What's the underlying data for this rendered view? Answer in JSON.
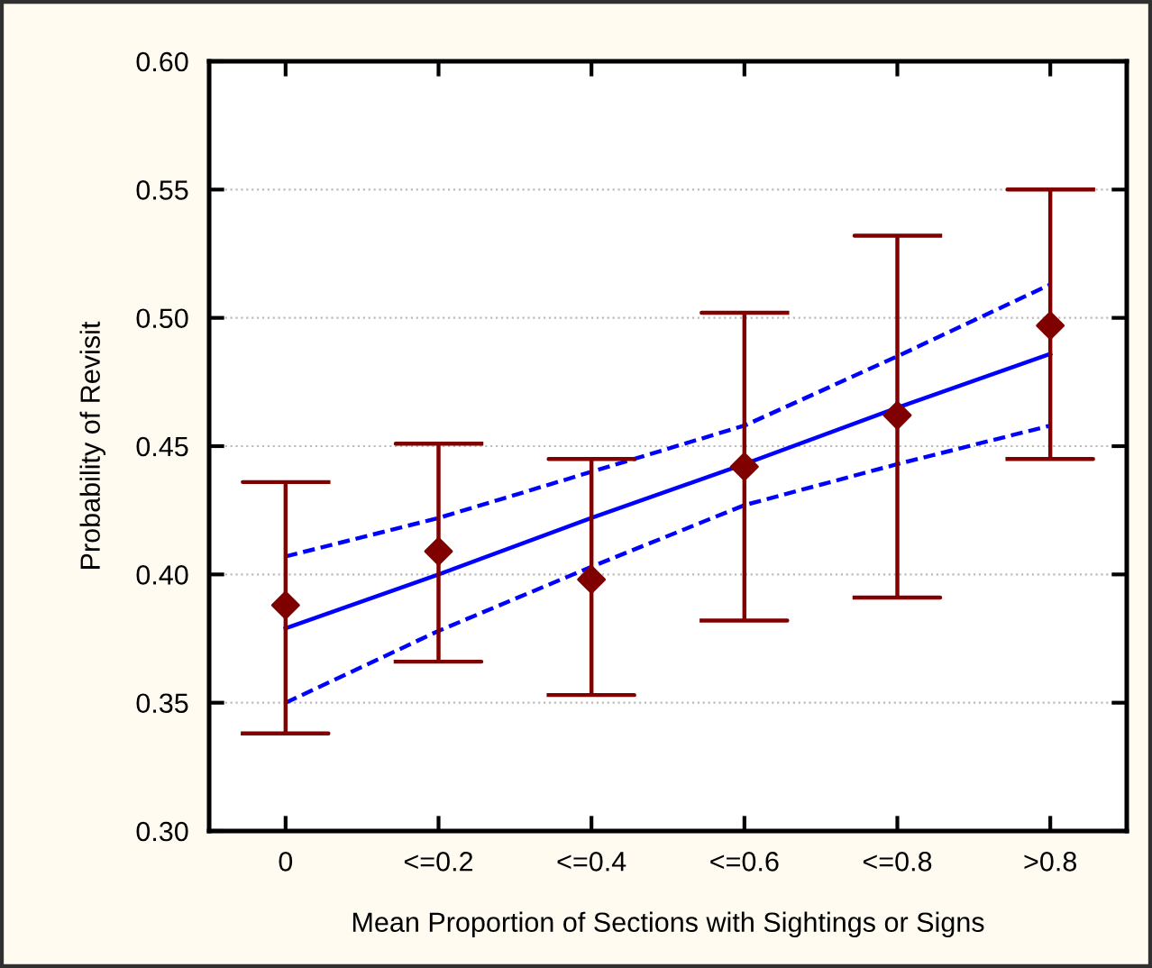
{
  "chart_data": {
    "type": "line",
    "xlabel": "Mean Proportion of Sections with Sightings or Signs",
    "ylabel": "Probability of Revisit",
    "categories": [
      "0",
      "<=0.2",
      "<=0.4",
      "<=0.6",
      "<=0.8",
      ">0.8"
    ],
    "ylim": [
      0.3,
      0.6
    ],
    "yticks": [
      {
        "value": 0.3,
        "label": "0.30"
      },
      {
        "value": 0.35,
        "label": "0.35"
      },
      {
        "value": 0.4,
        "label": "0.40"
      },
      {
        "value": 0.45,
        "label": "0.45"
      },
      {
        "value": 0.5,
        "label": "0.50"
      },
      {
        "value": 0.55,
        "label": "0.55"
      },
      {
        "value": 0.6,
        "label": "0.60"
      }
    ],
    "grid": "y",
    "legend": false,
    "series": [
      {
        "color": "#0000ff",
        "line_style": "solid",
        "marker": "none",
        "values": [
          0.379,
          0.4,
          0.422,
          0.443,
          0.465,
          0.486
        ]
      },
      {
        "color": "#0000ff",
        "line_style": "dashed",
        "marker": "none",
        "values": [
          0.407,
          0.422,
          0.44,
          0.458,
          0.485,
          0.513
        ]
      },
      {
        "color": "#0000ff",
        "line_style": "dashed",
        "marker": "none",
        "values": [
          0.35,
          0.378,
          0.403,
          0.427,
          0.443,
          0.458
        ]
      },
      {
        "type": "scatter",
        "color": "#800000",
        "marker": "diamond",
        "values": [
          0.388,
          0.409,
          0.398,
          0.442,
          0.462,
          0.497
        ],
        "errors": [
          [
            0.338,
            0.436
          ],
          [
            0.366,
            0.451
          ],
          [
            0.353,
            0.445
          ],
          [
            0.382,
            0.502
          ],
          [
            0.391,
            0.532
          ],
          [
            0.445,
            0.55
          ]
        ]
      }
    ]
  }
}
